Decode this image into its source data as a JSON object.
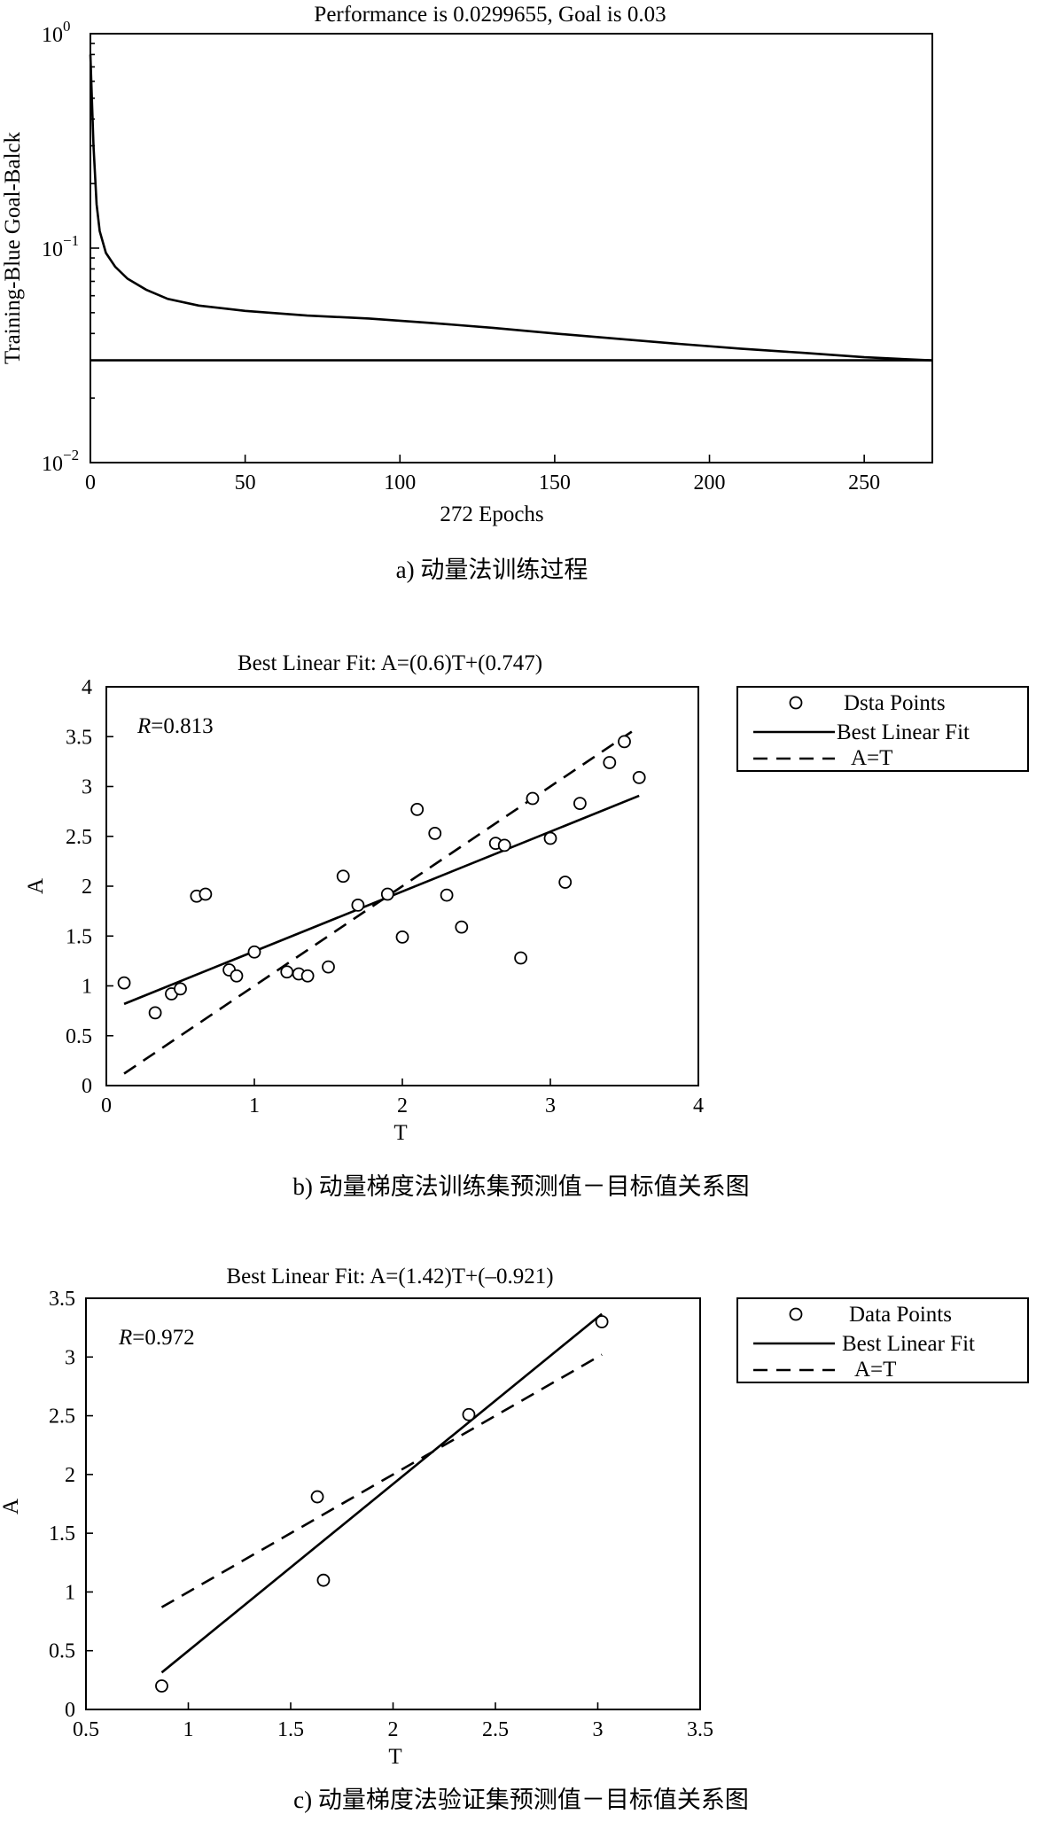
{
  "chart_data": [
    {
      "type": "line",
      "title": "Performance is 0.0299655, Goal is 0.03",
      "xlabel": "272 Epochs",
      "ylabel": "Training-Blue Goal-Balck",
      "caption": "a) 动量法训练过程",
      "yscale": "log",
      "xlim": [
        0,
        272
      ],
      "ylim": [
        0.01,
        1
      ],
      "x_ticks": [
        0,
        50,
        100,
        150,
        200,
        250
      ],
      "y_ticks": [
        {
          "base": "10",
          "exp": "0",
          "value": 1
        },
        {
          "base": "10",
          "exp": "−1",
          "value": 0.1
        },
        {
          "base": "10",
          "exp": "−2",
          "value": 0.01
        }
      ],
      "goal": 0.03,
      "series": [
        {
          "role": "training",
          "x": [
            0,
            0.3,
            1,
            2,
            3,
            5,
            8,
            12,
            18,
            25,
            35,
            50,
            70,
            90,
            110,
            130,
            150,
            170,
            190,
            210,
            230,
            250,
            272
          ],
          "y": [
            0.8,
            0.6,
            0.3,
            0.16,
            0.12,
            0.095,
            0.082,
            0.072,
            0.064,
            0.058,
            0.054,
            0.051,
            0.0485,
            0.047,
            0.0448,
            0.0425,
            0.04,
            0.0378,
            0.0358,
            0.034,
            0.0325,
            0.031,
            0.0299655
          ]
        },
        {
          "role": "goal",
          "x": [
            0,
            272
          ],
          "y": [
            0.03,
            0.03
          ]
        }
      ]
    },
    {
      "type": "scatter",
      "title": "Best Linear Fit: A=(0.6)T+(0.747)",
      "xlabel": "T",
      "ylabel": "A",
      "caption": "b) 动量梯度法训练集预测值－目标值关系图",
      "annotation": {
        "symbol": "R",
        "text": "=0.813"
      },
      "xlim": [
        0,
        4
      ],
      "ylim": [
        0,
        4
      ],
      "x_ticks": [
        "0",
        "1",
        "2",
        "3",
        "4"
      ],
      "y_ticks": [
        "0",
        "0.5",
        "1",
        "1.5",
        "2",
        "2.5",
        "3",
        "3.5",
        "4"
      ],
      "legend": [
        "Dsta Points",
        "Best Linear Fit",
        "A=T"
      ],
      "points": [
        [
          0.12,
          1.03
        ],
        [
          0.33,
          0.73
        ],
        [
          0.44,
          0.92
        ],
        [
          0.5,
          0.97
        ],
        [
          0.61,
          1.9
        ],
        [
          0.67,
          1.92
        ],
        [
          0.83,
          1.16
        ],
        [
          0.88,
          1.1
        ],
        [
          1.0,
          1.34
        ],
        [
          1.22,
          1.14
        ],
        [
          1.3,
          1.12
        ],
        [
          1.36,
          1.1
        ],
        [
          1.5,
          1.19
        ],
        [
          1.6,
          2.1
        ],
        [
          1.7,
          1.81
        ],
        [
          1.9,
          1.92
        ],
        [
          2.0,
          1.49
        ],
        [
          2.1,
          2.77
        ],
        [
          2.22,
          2.53
        ],
        [
          2.3,
          1.91
        ],
        [
          2.4,
          1.59
        ],
        [
          2.63,
          2.43
        ],
        [
          2.69,
          2.41
        ],
        [
          2.8,
          1.28
        ],
        [
          2.88,
          2.88
        ],
        [
          3.0,
          2.48
        ],
        [
          3.1,
          2.04
        ],
        [
          3.2,
          2.83
        ],
        [
          3.4,
          3.24
        ],
        [
          3.5,
          3.45
        ],
        [
          3.6,
          3.09
        ]
      ],
      "fit": {
        "slope": 0.6,
        "intercept": 0.747,
        "x_range": [
          0.12,
          3.6
        ]
      },
      "identity": {
        "x_range": [
          0.12,
          3.55
        ]
      }
    },
    {
      "type": "scatter",
      "title": "Best Linear Fit: A=(1.42)T+(–0.921)",
      "xlabel": "T",
      "ylabel": "A",
      "caption": "c) 动量梯度法验证集预测值－目标值关系图",
      "annotation": {
        "symbol": "R",
        "text": "=0.972"
      },
      "xlim": [
        0.5,
        3.5
      ],
      "ylim": [
        0,
        3.5
      ],
      "x_ticks": [
        "0.5",
        "1",
        "1.5",
        "2",
        "2.5",
        "3",
        "3.5"
      ],
      "y_ticks": [
        "0",
        "0.5",
        "1",
        "1.5",
        "2",
        "2.5",
        "3",
        "3.5"
      ],
      "legend": [
        "Data Points",
        "Best Linear Fit",
        "A=T"
      ],
      "points": [
        [
          0.87,
          0.2
        ],
        [
          1.63,
          1.81
        ],
        [
          1.66,
          1.1
        ],
        [
          2.37,
          2.51
        ],
        [
          3.02,
          3.3
        ]
      ],
      "fit": {
        "slope": 1.42,
        "intercept": -0.921,
        "x_range": [
          0.87,
          3.02
        ]
      },
      "identity": {
        "x_range": [
          0.87,
          3.02
        ]
      }
    }
  ]
}
